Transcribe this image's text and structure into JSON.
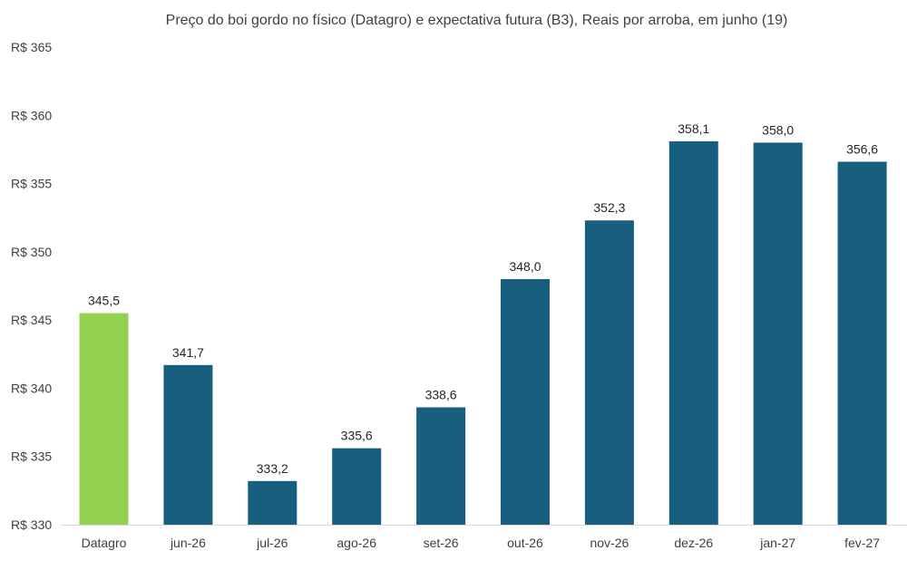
{
  "chart_data": {
    "type": "bar",
    "title": "Preço do boi gordo no físico (Datagro)  e expectativa futura (B3), Reais por arroba, em junho (19)",
    "categories": [
      "Datagro",
      "jun-26",
      "jul-26",
      "ago-26",
      "set-26",
      "out-26",
      "nov-26",
      "dez-26",
      "jan-27",
      "fev-27"
    ],
    "values": [
      345.5,
      341.7,
      333.2,
      335.6,
      338.6,
      348.0,
      352.3,
      358.1,
      358.0,
      356.6
    ],
    "value_labels": [
      "345,5",
      "341,7",
      "333,2",
      "335,6",
      "338,6",
      "348,0",
      "352,3",
      "358,1",
      "358,0",
      "356,6"
    ],
    "ylim": [
      330,
      365
    ],
    "y_ticks": [
      330,
      335,
      340,
      345,
      350,
      355,
      360,
      365
    ],
    "y_tick_labels": [
      "R$ 330",
      "R$ 335",
      "R$ 340",
      "R$ 345",
      "R$ 350",
      "R$ 355",
      "R$ 360",
      "R$ 365"
    ],
    "xlabel": "",
    "ylabel": "",
    "grid": false,
    "legend": "none",
    "colors": {
      "highlight": "#92d050",
      "bar": "#175e7f",
      "axis": "#d9d9d9",
      "text": "#404040"
    }
  }
}
